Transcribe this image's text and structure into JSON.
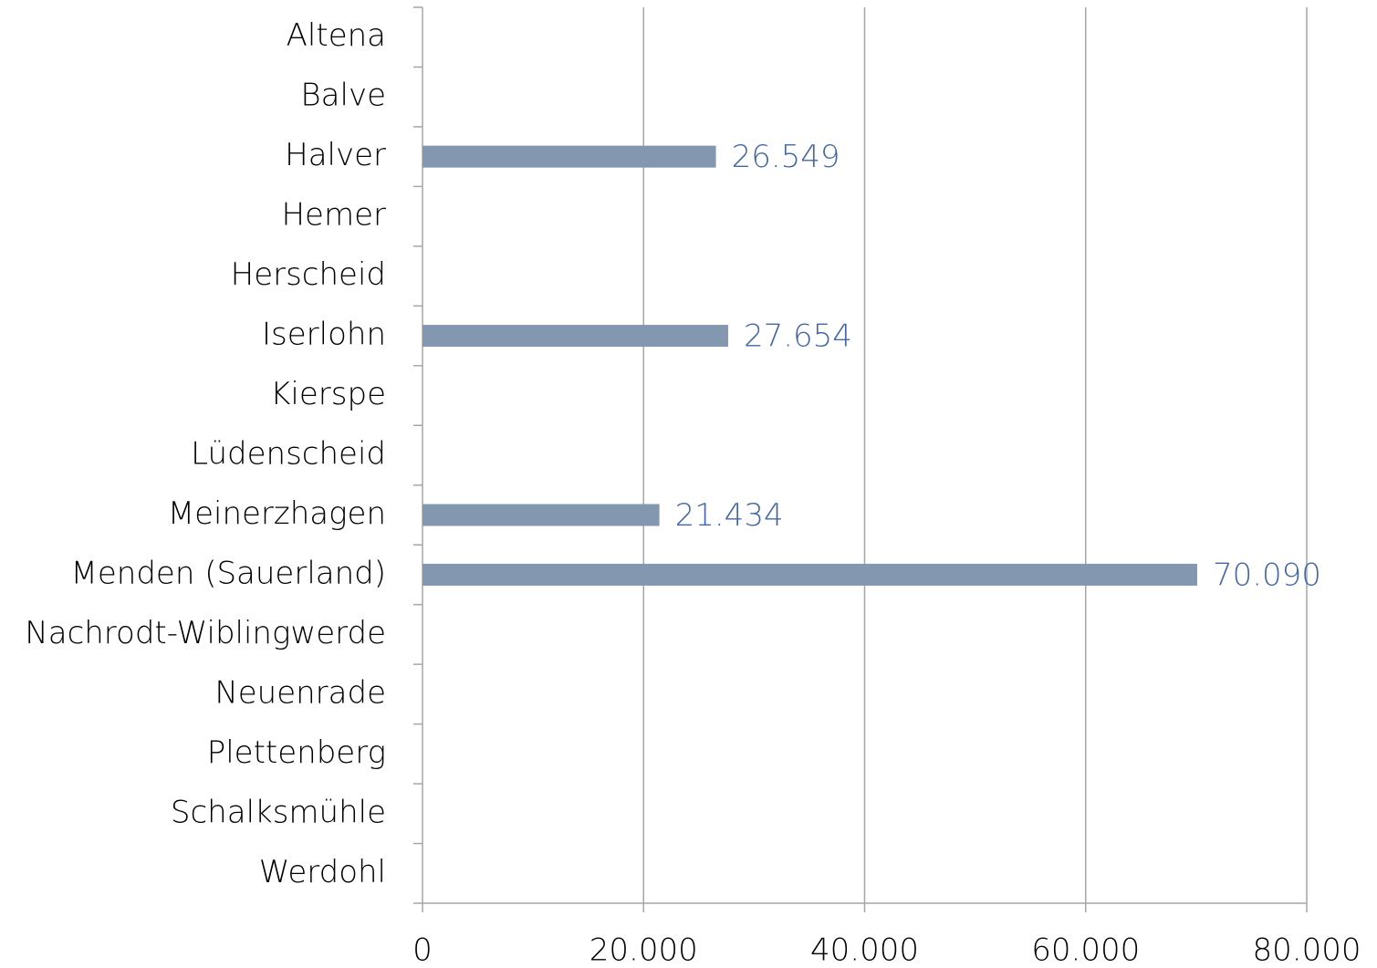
{
  "chart_data": {
    "type": "hbar",
    "categories": [
      "Altena",
      "Balve",
      "Halver",
      "Hemer",
      "Herscheid",
      "Iserlohn",
      "Kierspe",
      "Lüdenscheid",
      "Meinerzhagen",
      "Menden (Sauerland)",
      "Nachrodt-Wiblingwerde",
      "Neuenrade",
      "Plettenberg",
      "Schalksmühle",
      "Werdohl"
    ],
    "values": [
      null,
      null,
      26549,
      null,
      null,
      27654,
      null,
      null,
      21434,
      70090,
      null,
      null,
      null,
      null,
      null
    ],
    "value_labels": [
      null,
      null,
      "26.549",
      null,
      null,
      "27.654",
      null,
      null,
      "21.434",
      "70.090",
      null,
      null,
      null,
      null,
      null
    ],
    "color": "#8497b0",
    "label_color": "#4466a6",
    "xlim": [
      0,
      80000
    ],
    "xticks": [
      0,
      {
        "value": 20000,
        "label": "20.000"
      },
      {
        "value": 40000,
        "label": "40.000"
      },
      {
        "value": 60000,
        "label": "60.000"
      },
      {
        "value": 80000,
        "label": "80.000"
      }
    ],
    "grid": true
  }
}
